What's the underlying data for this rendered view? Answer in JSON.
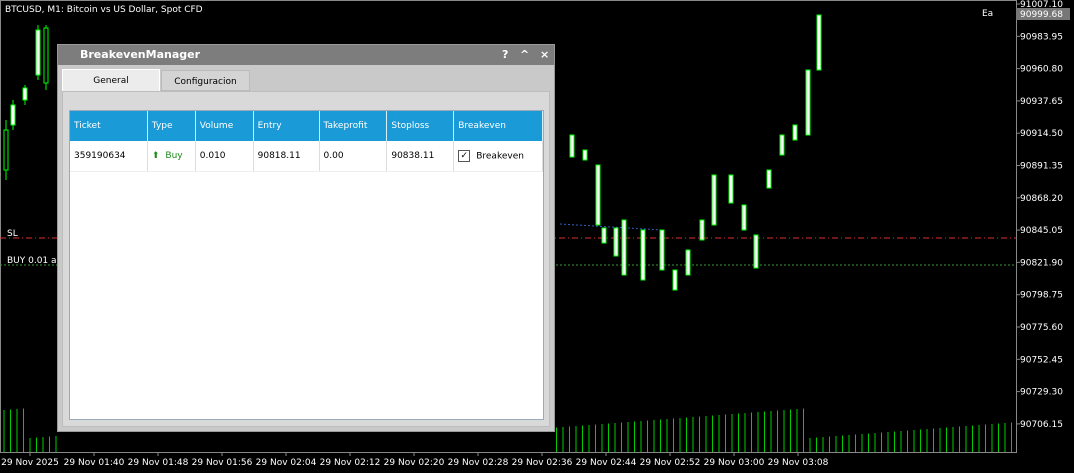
{
  "chart": {
    "symbol_title": "BTCUSD, M1:  Bitcoin vs US Dollar, Spot CFD",
    "price_labels": [
      "91007.10",
      "90983.95",
      "90960.80",
      "90937.65",
      "90914.50",
      "90891.35",
      "90868.20",
      "90845.05",
      "90821.90",
      "90798.75",
      "90775.60",
      "90752.45",
      "90729.30",
      "90706.15"
    ],
    "current_price": "90999.68",
    "time_labels": [
      "29 Nov 2025",
      "29 Nov 01:40",
      "29 Nov 01:48",
      "29 Nov 01:56",
      "29 Nov 02:04",
      "29 Nov 02:12",
      "29 Nov 02:20",
      "29 Nov 02:28",
      "29 Nov 02:36",
      "29 Nov 02:44",
      "29 Nov 02:52",
      "29 Nov 03:00",
      "29 Nov 03:08"
    ],
    "sl_label": "SL",
    "buy_label": "BUY 0.01 a",
    "ea_label": "Ea"
  },
  "dialog": {
    "title": "BreakevenManager",
    "help": "?",
    "minimize": "^",
    "close": "×",
    "tabs": [
      "General",
      "Configuracion"
    ],
    "table": {
      "headers": [
        "Ticket",
        "Type",
        "Volume",
        "Entry",
        "Takeprofit",
        "Stoploss",
        "Breakeven"
      ],
      "rows": [
        [
          "359190634",
          "Buy",
          "0.010",
          "90818.11",
          "0.00",
          "90838.11",
          "Breakeven"
        ]
      ]
    }
  }
}
